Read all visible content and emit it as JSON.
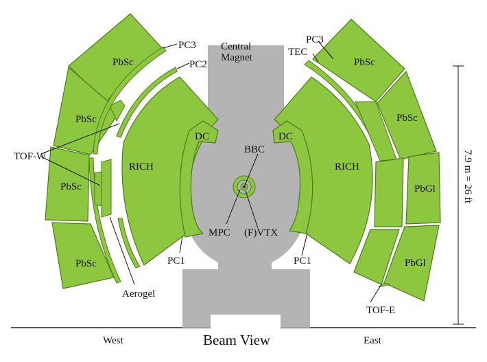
{
  "title": "Beam View",
  "sides": {
    "west": "West",
    "east": "East"
  },
  "magnet": {
    "line1": "Central",
    "line2": "Magnet"
  },
  "scale_label": "7.9 m = 26 ft",
  "labels": {
    "pbsc_w1": "PbSc",
    "pbsc_w2": "PbSc",
    "pbsc_w3": "PbSc",
    "pbsc_w4": "PbSc",
    "pbsc_e1": "PbSc",
    "pbsc_e2": "PbSc",
    "pbgl_e1": "PbGl",
    "pbgl_e2": "PbGl",
    "rich_w": "RICH",
    "rich_e": "RICH",
    "dc_w": "DC",
    "dc_e": "DC",
    "pc1_w": "PC1",
    "pc1_e": "PC1",
    "pc2_w": "PC2",
    "pc3_w": "PC3",
    "pc3_e": "PC3",
    "tec": "TEC",
    "tof_w": "TOF-W",
    "tof_e": "TOF-E",
    "aerogel": "Aerogel",
    "bbc": "BBC",
    "mpc": "MPC",
    "fvtx": "(F)VTX"
  }
}
